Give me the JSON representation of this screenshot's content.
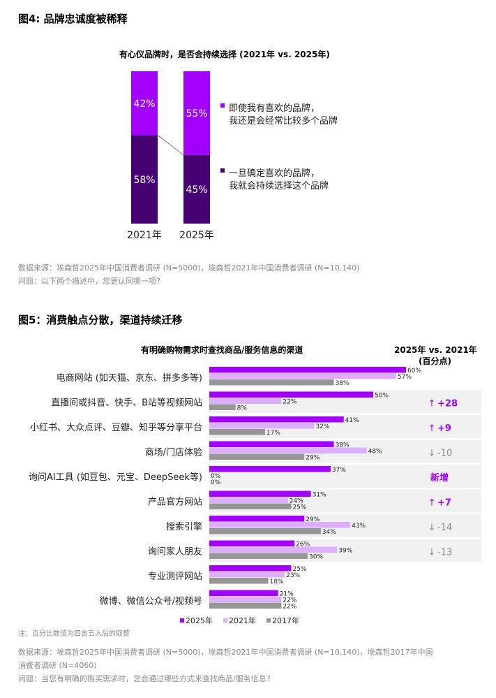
{
  "fig4": {
    "title": "图4: 品牌忠诚度被稀释",
    "source": "数据来源：埃森哲2025年中国消费者调研 (N=5000)，埃森哲2021年中国消费者调研 (N=10,140)",
    "question": "问题：以下两个描述中，您更认同哪一项？"
  },
  "fig5": {
    "title": "图5：消费触点分散，渠道持续迁移",
    "note": "注：百分比数值为四舍五入后的取整",
    "source_line1": "数据来源：埃森哲2025年中国消费者调研 (N=5000)，埃森哲2021年中国消费者调研 (N=10,140)，埃森哲2017年中国",
    "source_line2": "消费者调研 (N=4060)",
    "question": "问题：当您有明确的购买需求时，您会通过哪些方式来查找商品/服务信息？"
  },
  "chart_data": [
    {
      "type": "bar",
      "stacked": true,
      "title": "有心仪品牌时，是否会持续选择 (2021年 vs. 2025年)",
      "categories": [
        "2021年",
        "2025年"
      ],
      "series": [
        {
          "name": "即使我有喜欢的品牌，我还是会经常比较多个品牌",
          "legend_lines": [
            "即使我有喜欢的品牌，",
            "我还是会经常比较多个品牌"
          ],
          "values": [
            42,
            55
          ],
          "color": "#a100ff"
        },
        {
          "name": "一旦确定喜欢的品牌，我就会持续选择这个品牌",
          "legend_lines": [
            "一旦确定喜欢的品牌，",
            "我就会持续选择这个品牌"
          ],
          "values": [
            58,
            45
          ],
          "color": "#460073"
        }
      ],
      "value_suffix": "%",
      "ylim": [
        0,
        100
      ]
    },
    {
      "type": "bar",
      "orientation": "horizontal",
      "title": "有明确购物需求时查找商品/服务信息的渠道",
      "change_header": [
        "2025年 vs. 2021年",
        "(百分点)"
      ],
      "categories": [
        "电商网站 (如天猫、京东、拼多多等)",
        "直播间或抖音、快手、B站等视频网站",
        "小红书、大众点评、豆瓣、知乎等分享平台",
        "商场/门店体验",
        "询问AI工具 (如豆包、元宝、DeepSeek等)",
        "产品官方网站",
        "搜索引擎",
        "询问家人朋友",
        "专业测评网站",
        "微博、微信公众号/视频号"
      ],
      "series": [
        {
          "name": "2025年",
          "values": [
            60,
            50,
            41,
            38,
            37,
            31,
            29,
            26,
            25,
            21
          ],
          "color": "#a100ff"
        },
        {
          "name": "2021年",
          "values": [
            57,
            22,
            32,
            48,
            0,
            24,
            43,
            39,
            23,
            22
          ],
          "color": "#dcaffd"
        },
        {
          "name": "2017年",
          "values": [
            38,
            8,
            17,
            29,
            0,
            25,
            34,
            30,
            18,
            22
          ],
          "color": "#969696"
        }
      ],
      "changes": [
        {
          "row": 1,
          "arrow": "↑",
          "text": "+28",
          "dir": "up"
        },
        {
          "row": 2,
          "arrow": "↑",
          "text": "+9",
          "dir": "up"
        },
        {
          "row": 3,
          "arrow": "↓",
          "text": "-10",
          "dir": "down"
        },
        {
          "row": 4,
          "arrow": "",
          "text": "新增",
          "dir": "new"
        },
        {
          "row": 5,
          "arrow": "↑",
          "text": "+7",
          "dir": "up"
        },
        {
          "row": 6,
          "arrow": "↓",
          "text": "-14",
          "dir": "down"
        },
        {
          "row": 7,
          "arrow": "↓",
          "text": "-13",
          "dir": "down"
        }
      ],
      "value_suffix": "%",
      "xlim": [
        0,
        100
      ]
    }
  ]
}
